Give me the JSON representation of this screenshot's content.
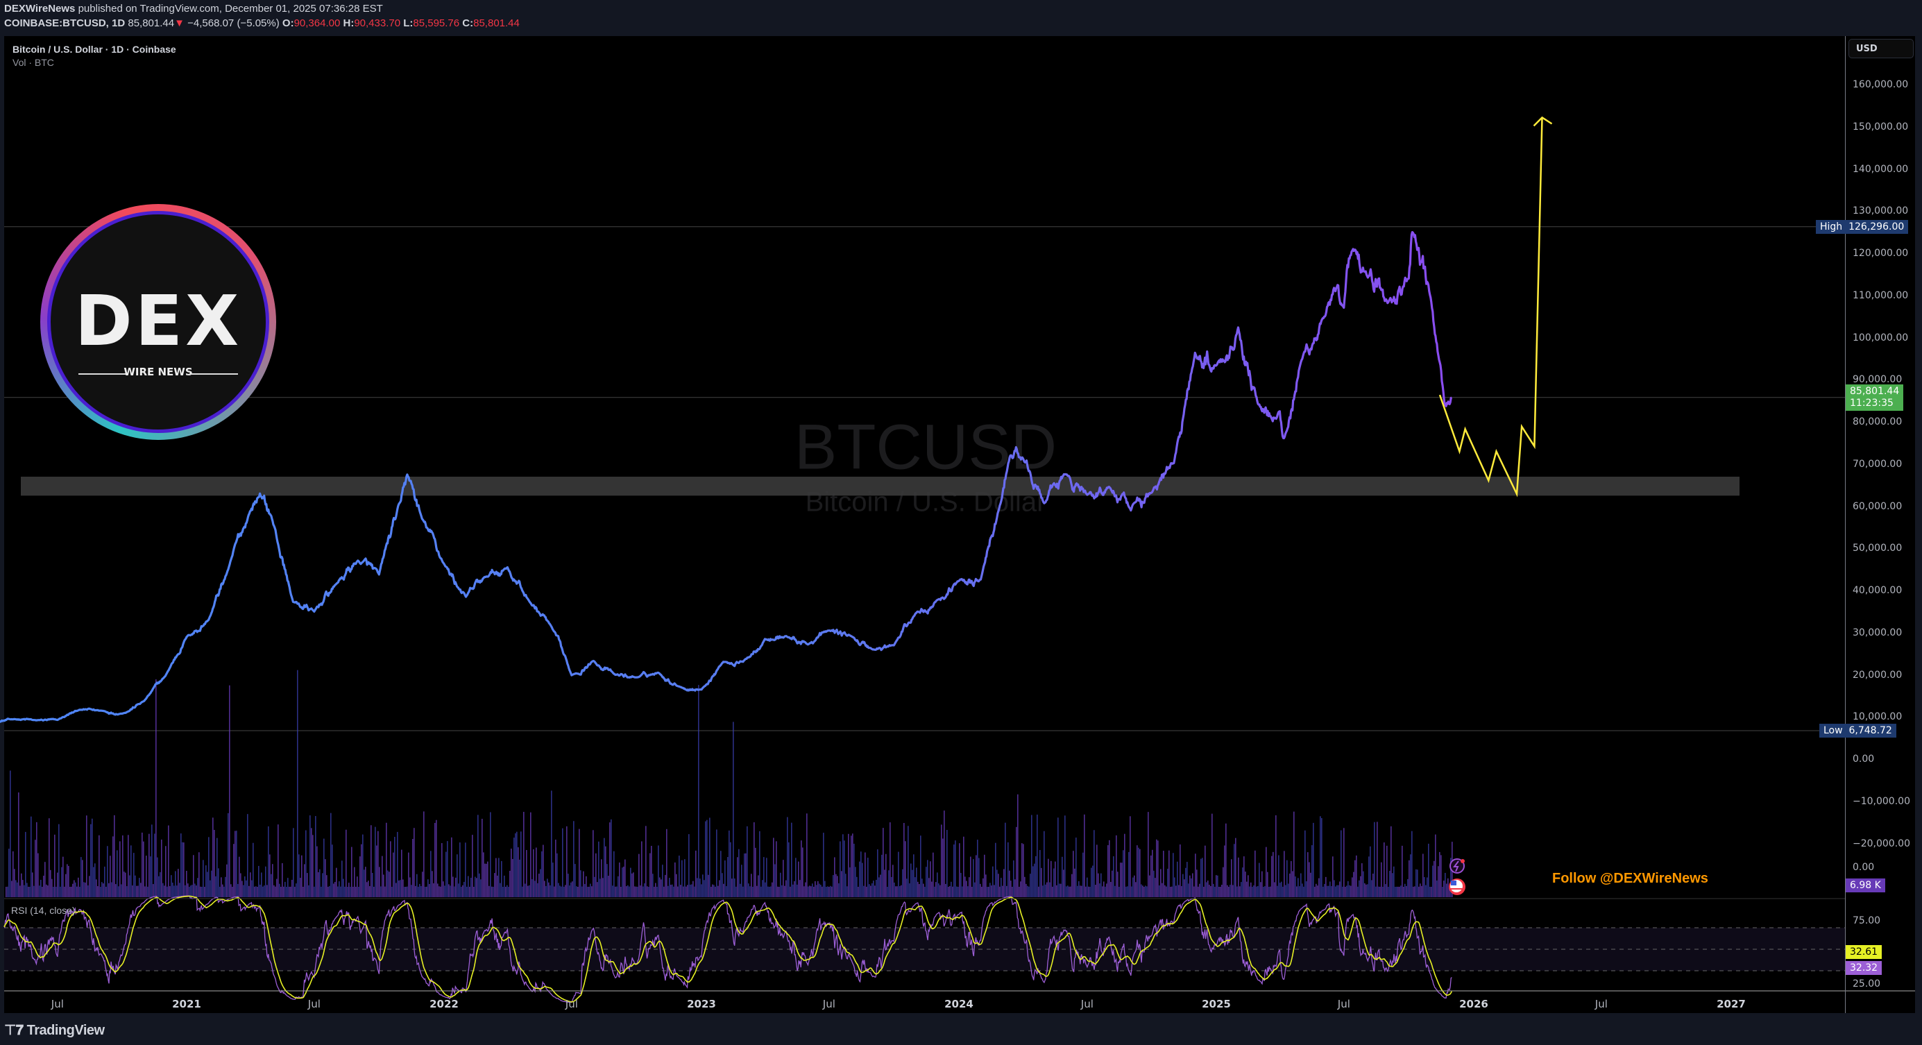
{
  "header": {
    "publisher": "DEXWireNews",
    "published_text": "published on TradingView.com, December 01, 2025 07:36:28 EST",
    "symbol": "COINBASE:BTCUSD, 1D",
    "last": "85,801.44",
    "change": "−4,568.07 (−5.05%)",
    "o_label": "O:",
    "o": "90,364.00",
    "h_label": "H:",
    "h": "90,433.70",
    "l_label": "L:",
    "l": "85,595.76",
    "c_label": "C:",
    "c": "85,801.44"
  },
  "legend": {
    "title": "Bitcoin / U.S. Dollar · 1D · Coinbase",
    "volume": "Vol · BTC"
  },
  "watermark": {
    "symbol": "BTCUSD",
    "name": "Bitcoin / U.S. Dollar"
  },
  "logo": {
    "text": "DEX",
    "sub": "WIRE NEWS"
  },
  "follow_text": "Follow @DEXWireNews",
  "currency_button": "USD",
  "price_axis": {
    "ticks": [
      "160,000.00",
      "150,000.00",
      "140,000.00",
      "130,000.00",
      "120,000.00",
      "110,000.00",
      "100,000.00",
      "90,000.00",
      "80,000.00",
      "70,000.00",
      "60,000.00",
      "50,000.00",
      "40,000.00",
      "30,000.00",
      "20,000.00",
      "10,000.00",
      "0.00",
      "−10,000.00",
      "−20,000.00"
    ],
    "high_label": "High",
    "high_value": "126,296.00",
    "low_label": "Low",
    "low_value": "6,748.72",
    "current_price": "85,801.44",
    "countdown": "11:23:35",
    "volume_value": "6.98 K",
    "volume_zero": "0.00"
  },
  "rsi": {
    "label": "RSI (14, close)",
    "ticks": [
      "75.00",
      "25.00"
    ],
    "value_ma": "32.61",
    "value_rsi": "32.32",
    "upper": 70,
    "middle": 50,
    "lower": 30
  },
  "time_axis": [
    {
      "label": "Jul",
      "date": "2020-07-01",
      "year": false
    },
    {
      "label": "2021",
      "date": "2021-01-01",
      "year": true
    },
    {
      "label": "Jul",
      "date": "2021-07-01",
      "year": false
    },
    {
      "label": "2022",
      "date": "2022-01-01",
      "year": true
    },
    {
      "label": "Jul",
      "date": "2022-07-01",
      "year": false
    },
    {
      "label": "2023",
      "date": "2023-01-01",
      "year": true
    },
    {
      "label": "Jul",
      "date": "2023-07-01",
      "year": false
    },
    {
      "label": "2024",
      "date": "2024-01-01",
      "year": true
    },
    {
      "label": "Jul",
      "date": "2024-07-01",
      "year": false
    },
    {
      "label": "2025",
      "date": "2025-01-01",
      "year": true
    },
    {
      "label": "Jul",
      "date": "2025-07-01",
      "year": false
    },
    {
      "label": "2026",
      "date": "2026-01-01",
      "year": true
    },
    {
      "label": "Jul",
      "date": "2026-07-01",
      "year": false
    },
    {
      "label": "2027",
      "date": "2027-01-01",
      "year": true
    }
  ],
  "footer": {
    "brand": "TradingView"
  },
  "colors": {
    "line_start": "#4f86f7",
    "line_end": "#8b4cf0",
    "projection": "#ffeb3b",
    "up": "#4caf50",
    "down": "#f23645",
    "high_low_badge": "#1e3a6e",
    "volume_badge": "#673ab7",
    "rsi_line": "#9c5fd6",
    "rsi_ma": "#e6f025",
    "follow": "#ff9800"
  },
  "chart_data": {
    "type": "line",
    "ylim": [
      -25000,
      165000
    ],
    "grid": false,
    "series": [
      {
        "points": [
          [
            "2020-04-01",
            8700
          ],
          [
            "2020-05-01",
            9500
          ],
          [
            "2020-06-01",
            9200
          ],
          [
            "2020-07-01",
            9300
          ],
          [
            "2020-08-01",
            11700
          ],
          [
            "2020-09-01",
            11500
          ],
          [
            "2020-10-01",
            10800
          ],
          [
            "2020-11-01",
            13800
          ],
          [
            "2020-12-01",
            19700
          ],
          [
            "2021-01-01",
            29000
          ],
          [
            "2021-02-01",
            33000
          ],
          [
            "2021-03-01",
            45000
          ],
          [
            "2021-04-01",
            58800
          ],
          [
            "2021-04-15",
            63000
          ],
          [
            "2021-05-01",
            57700
          ],
          [
            "2021-06-01",
            37300
          ],
          [
            "2021-07-01",
            35000
          ],
          [
            "2021-08-01",
            41500
          ],
          [
            "2021-09-01",
            47100
          ],
          [
            "2021-10-01",
            43800
          ],
          [
            "2021-11-01",
            61300
          ],
          [
            "2021-11-10",
            67500
          ],
          [
            "2021-12-01",
            57000
          ],
          [
            "2022-01-01",
            46300
          ],
          [
            "2022-02-01",
            38500
          ],
          [
            "2022-03-01",
            43200
          ],
          [
            "2022-04-01",
            45500
          ],
          [
            "2022-05-01",
            37700
          ],
          [
            "2022-06-01",
            31800
          ],
          [
            "2022-07-01",
            19900
          ],
          [
            "2022-08-01",
            23300
          ],
          [
            "2022-09-01",
            20000
          ],
          [
            "2022-10-01",
            19400
          ],
          [
            "2022-11-01",
            20500
          ],
          [
            "2022-12-01",
            17200
          ],
          [
            "2023-01-01",
            16500
          ],
          [
            "2023-02-01",
            23100
          ],
          [
            "2023-03-01",
            23100
          ],
          [
            "2023-04-01",
            28500
          ],
          [
            "2023-05-01",
            29200
          ],
          [
            "2023-06-01",
            27200
          ],
          [
            "2023-07-01",
            30500
          ],
          [
            "2023-08-01",
            29200
          ],
          [
            "2023-09-01",
            26000
          ],
          [
            "2023-10-01",
            27000
          ],
          [
            "2023-11-01",
            34600
          ],
          [
            "2023-12-01",
            37700
          ],
          [
            "2024-01-01",
            42300
          ],
          [
            "2024-02-01",
            42600
          ],
          [
            "2024-03-01",
            61200
          ],
          [
            "2024-03-14",
            72000
          ],
          [
            "2024-04-01",
            71300
          ],
          [
            "2024-05-01",
            60700
          ],
          [
            "2024-06-01",
            67500
          ],
          [
            "2024-07-01",
            62700
          ],
          [
            "2024-08-01",
            64600
          ],
          [
            "2024-09-01",
            59000
          ],
          [
            "2024-10-01",
            63300
          ],
          [
            "2024-11-01",
            70200
          ],
          [
            "2024-12-01",
            96400
          ],
          [
            "2025-01-01",
            93400
          ],
          [
            "2025-02-01",
            102400
          ],
          [
            "2025-03-01",
            84300
          ],
          [
            "2025-04-01",
            82500
          ],
          [
            "2025-04-08",
            76500
          ],
          [
            "2025-05-01",
            94200
          ],
          [
            "2025-06-01",
            104600
          ],
          [
            "2025-07-01",
            107100
          ],
          [
            "2025-07-14",
            121000
          ],
          [
            "2025-08-01",
            115700
          ],
          [
            "2025-09-01",
            108200
          ],
          [
            "2025-10-01",
            114000
          ],
          [
            "2025-10-06",
            125000
          ],
          [
            "2025-11-01",
            109500
          ],
          [
            "2025-11-21",
            84000
          ],
          [
            "2025-12-01",
            85801.44
          ]
        ]
      }
    ],
    "projection": [
      [
        "2025-11-14",
        86400
      ],
      [
        "2025-12-12",
        73000
      ],
      [
        "2025-12-20",
        78300
      ],
      [
        "2026-01-22",
        66100
      ],
      [
        "2026-02-02",
        73000
      ],
      [
        "2026-03-03",
        62900
      ],
      [
        "2026-03-10",
        78900
      ],
      [
        "2026-03-28",
        74200
      ],
      [
        "2026-04-08",
        152200
      ]
    ],
    "support_zone": [
      62500,
      67000
    ],
    "high": 126296.0,
    "low": 6748.72,
    "current": 85801.44
  }
}
